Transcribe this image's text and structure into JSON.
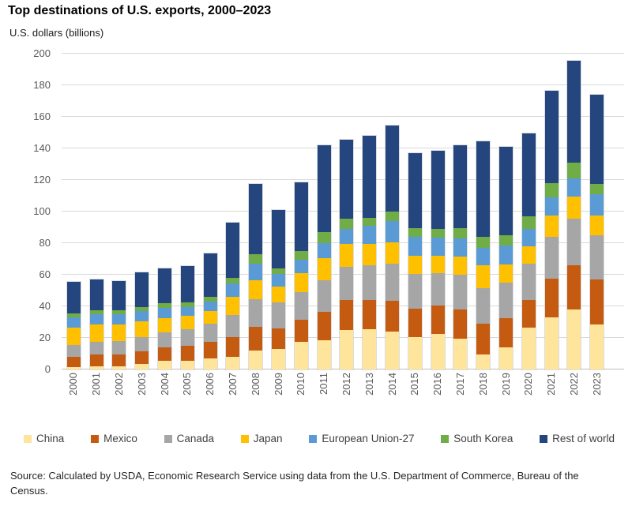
{
  "header": {
    "title": "Top destinations of U.S. exports, 2000–2023",
    "subtitle": "U.S. dollars (billions)"
  },
  "chart_data": {
    "type": "bar",
    "stacked": true,
    "title": "Top destinations of U.S. exports, 2000–2023",
    "ylabel": "U.S. dollars (billions)",
    "xlabel": "",
    "ylim": [
      0,
      200
    ],
    "yticks": [
      0,
      20,
      40,
      60,
      80,
      100,
      120,
      140,
      160,
      180,
      200
    ],
    "grid": true,
    "legend_position": "bottom",
    "categories": [
      "2000",
      "2001",
      "2002",
      "2003",
      "2004",
      "2005",
      "2006",
      "2007",
      "2008",
      "2009",
      "2010",
      "2011",
      "2012",
      "2013",
      "2014",
      "2015",
      "2016",
      "2017",
      "2018",
      "2019",
      "2020",
      "2021",
      "2022",
      "2023"
    ],
    "series": [
      {
        "name": "China",
        "color": "#FFE49C",
        "values": [
          1.7,
          2.0,
          1.8,
          3.5,
          5.5,
          5.5,
          7.0,
          8.0,
          12.0,
          13.0,
          17.5,
          18.5,
          25.0,
          25.5,
          24.0,
          20.5,
          22.5,
          19.5,
          9.5,
          14.0,
          26.5,
          33.0,
          38.0,
          28.5
        ]
      },
      {
        "name": "Mexico",
        "color": "#C55A11",
        "values": [
          6.5,
          7.5,
          7.5,
          8.0,
          8.5,
          9.5,
          10.5,
          12.5,
          15.0,
          13.0,
          14.0,
          18.0,
          19.0,
          18.5,
          19.5,
          18.0,
          18.0,
          18.5,
          19.5,
          18.5,
          17.5,
          24.5,
          28.0,
          28.5
        ]
      },
      {
        "name": "Canada",
        "color": "#A6A6A6",
        "values": [
          7.5,
          8.0,
          8.5,
          9.0,
          9.5,
          10.5,
          11.5,
          14.0,
          17.5,
          16.5,
          17.5,
          20.0,
          21.0,
          22.0,
          23.5,
          22.0,
          20.5,
          22.0,
          22.5,
          22.5,
          23.0,
          26.5,
          29.5,
          28.0
        ]
      },
      {
        "name": "Japan",
        "color": "#FFC000",
        "values": [
          11.0,
          11.0,
          10.5,
          10.0,
          9.0,
          8.5,
          8.0,
          11.5,
          12.0,
          10.0,
          12.0,
          14.0,
          14.5,
          13.5,
          13.5,
          11.5,
          11.0,
          11.5,
          14.5,
          11.5,
          11.0,
          13.5,
          14.0,
          12.5
        ]
      },
      {
        "name": "European Union-27",
        "color": "#5B9BD5",
        "values": [
          6.5,
          6.5,
          6.5,
          6.5,
          6.5,
          5.5,
          6.0,
          8.5,
          10.5,
          8.0,
          8.5,
          9.5,
          9.5,
          11.5,
          13.5,
          12.0,
          11.5,
          11.5,
          11.0,
          12.0,
          11.0,
          11.5,
          11.5,
          13.5
        ]
      },
      {
        "name": "South Korea",
        "color": "#70AD47",
        "values": [
          2.5,
          2.5,
          2.5,
          2.5,
          3.0,
          3.0,
          3.0,
          3.5,
          6.0,
          3.5,
          5.5,
          7.0,
          6.5,
          5.0,
          6.0,
          5.5,
          5.5,
          6.5,
          7.0,
          6.5,
          8.0,
          9.0,
          10.0,
          6.5
        ]
      },
      {
        "name": "Rest of world",
        "color": "#24457D",
        "values": [
          20.0,
          19.5,
          18.5,
          22.0,
          22.0,
          23.0,
          27.5,
          35.0,
          44.5,
          37.0,
          43.5,
          55.0,
          50.0,
          52.0,
          54.5,
          47.5,
          49.5,
          52.5,
          60.5,
          56.0,
          52.5,
          58.5,
          64.5,
          56.5
        ]
      }
    ]
  },
  "legend": {
    "items": [
      "China",
      "Mexico",
      "Canada",
      "Japan",
      "European Union-27",
      "South Korea",
      "Rest of world"
    ]
  },
  "source": {
    "text": "Source: Calculated by USDA, Economic Research Service using data from the U.S. Department of Commerce, Bureau of the Census."
  },
  "colors": {
    "gridline": "#D9D9D9",
    "axis_line": "#BFBFBF",
    "tick_text": "#595959"
  }
}
